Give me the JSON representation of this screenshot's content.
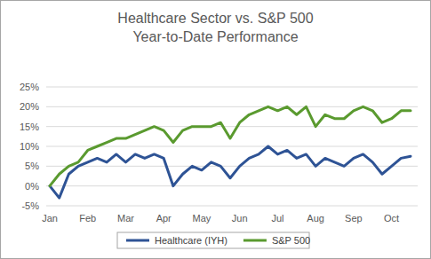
{
  "chart_data": {
    "type": "line",
    "title": [
      "Healthcare Sector vs. S&P 500",
      "Year-to-Date Performance"
    ],
    "categories": [
      "Jan",
      null,
      null,
      null,
      "Feb",
      null,
      null,
      null,
      "Mar",
      null,
      null,
      null,
      "Apr",
      null,
      null,
      null,
      "May",
      null,
      null,
      null,
      "Jun",
      null,
      null,
      null,
      "Jul",
      null,
      null,
      null,
      "Aug",
      null,
      null,
      null,
      "Sep",
      null,
      null,
      null,
      "Oct",
      null,
      null
    ],
    "series": [
      {
        "name": "Healthcare (IYH)",
        "color": "#2e5395",
        "values": [
          0,
          -3,
          3,
          5,
          6,
          7,
          6,
          8,
          6,
          8,
          7,
          8,
          7,
          0,
          3,
          5,
          4,
          6,
          5,
          2,
          5,
          7,
          8,
          10,
          8,
          9,
          7,
          8,
          5,
          7,
          6,
          5,
          7,
          8,
          6,
          3,
          5,
          7,
          7.5
        ]
      },
      {
        "name": "S&P 500",
        "color": "#5a9a2f",
        "values": [
          0,
          3,
          5,
          6,
          9,
          10,
          11,
          12,
          12,
          13,
          14,
          15,
          14,
          11,
          14,
          15,
          15,
          15,
          16,
          12,
          16,
          18,
          19,
          20,
          19,
          20,
          18,
          20,
          15,
          18,
          17,
          17,
          19,
          20,
          19,
          16,
          17,
          19,
          19
        ]
      }
    ],
    "ylim": [
      -5,
      25
    ],
    "yticks": [
      {
        "value": -5,
        "label": "-5%"
      },
      {
        "value": 0,
        "label": "0%"
      },
      {
        "value": 5,
        "label": "5%"
      },
      {
        "value": 10,
        "label": "10%"
      },
      {
        "value": 15,
        "label": "15%"
      },
      {
        "value": 20,
        "label": "20%"
      },
      {
        "value": 25,
        "label": "25%"
      }
    ],
    "grid": true,
    "legend": "bottom"
  }
}
